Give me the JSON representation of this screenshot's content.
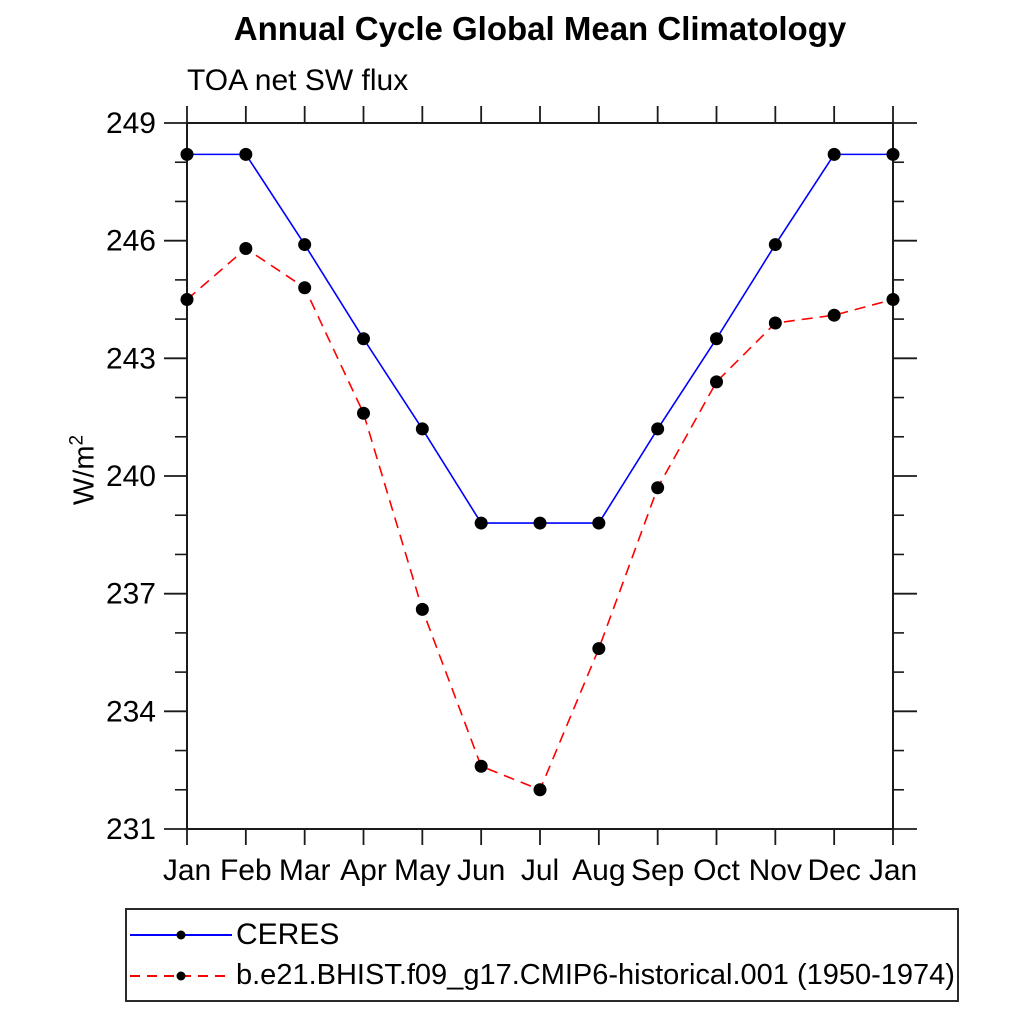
{
  "chart_data": {
    "type": "line",
    "title": "Annual Cycle Global Mean Climatology",
    "subtitle": "TOA net SW flux",
    "ylabel": {
      "base": "W/m",
      "exponent": "2"
    },
    "x_categories": [
      "Jan",
      "Feb",
      "Mar",
      "Apr",
      "May",
      "Jun",
      "Jul",
      "Aug",
      "Sep",
      "Oct",
      "Nov",
      "Dec",
      "Jan"
    ],
    "ylim": [
      231,
      249
    ],
    "ytick_major_step": 3,
    "ytick_minor_step": 1,
    "ytick_labels": [
      "231",
      "234",
      "237",
      "240",
      "243",
      "246",
      "249"
    ],
    "grid": false,
    "legend_position": "bottom-left",
    "axis_color": "#1a1a1a",
    "series": [
      {
        "name": "CERES",
        "color": "#0000ff",
        "line_style": "solid",
        "marker": "filled-circle",
        "marker_color": "#000000",
        "values": [
          248.2,
          248.2,
          245.9,
          243.5,
          241.2,
          238.8,
          238.8,
          238.8,
          241.2,
          243.5,
          245.9,
          248.2,
          248.2
        ]
      },
      {
        "name": "b.e21.BHIST.f09_g17.CMIP6-historical.001 (1950-1974)",
        "color": "#ff0000",
        "line_style": "dashed",
        "marker": "filled-circle",
        "marker_color": "#000000",
        "values": [
          244.5,
          245.8,
          244.8,
          241.6,
          236.6,
          232.6,
          232.0,
          235.6,
          239.7,
          242.4,
          243.9,
          244.1,
          244.5
        ]
      }
    ]
  }
}
